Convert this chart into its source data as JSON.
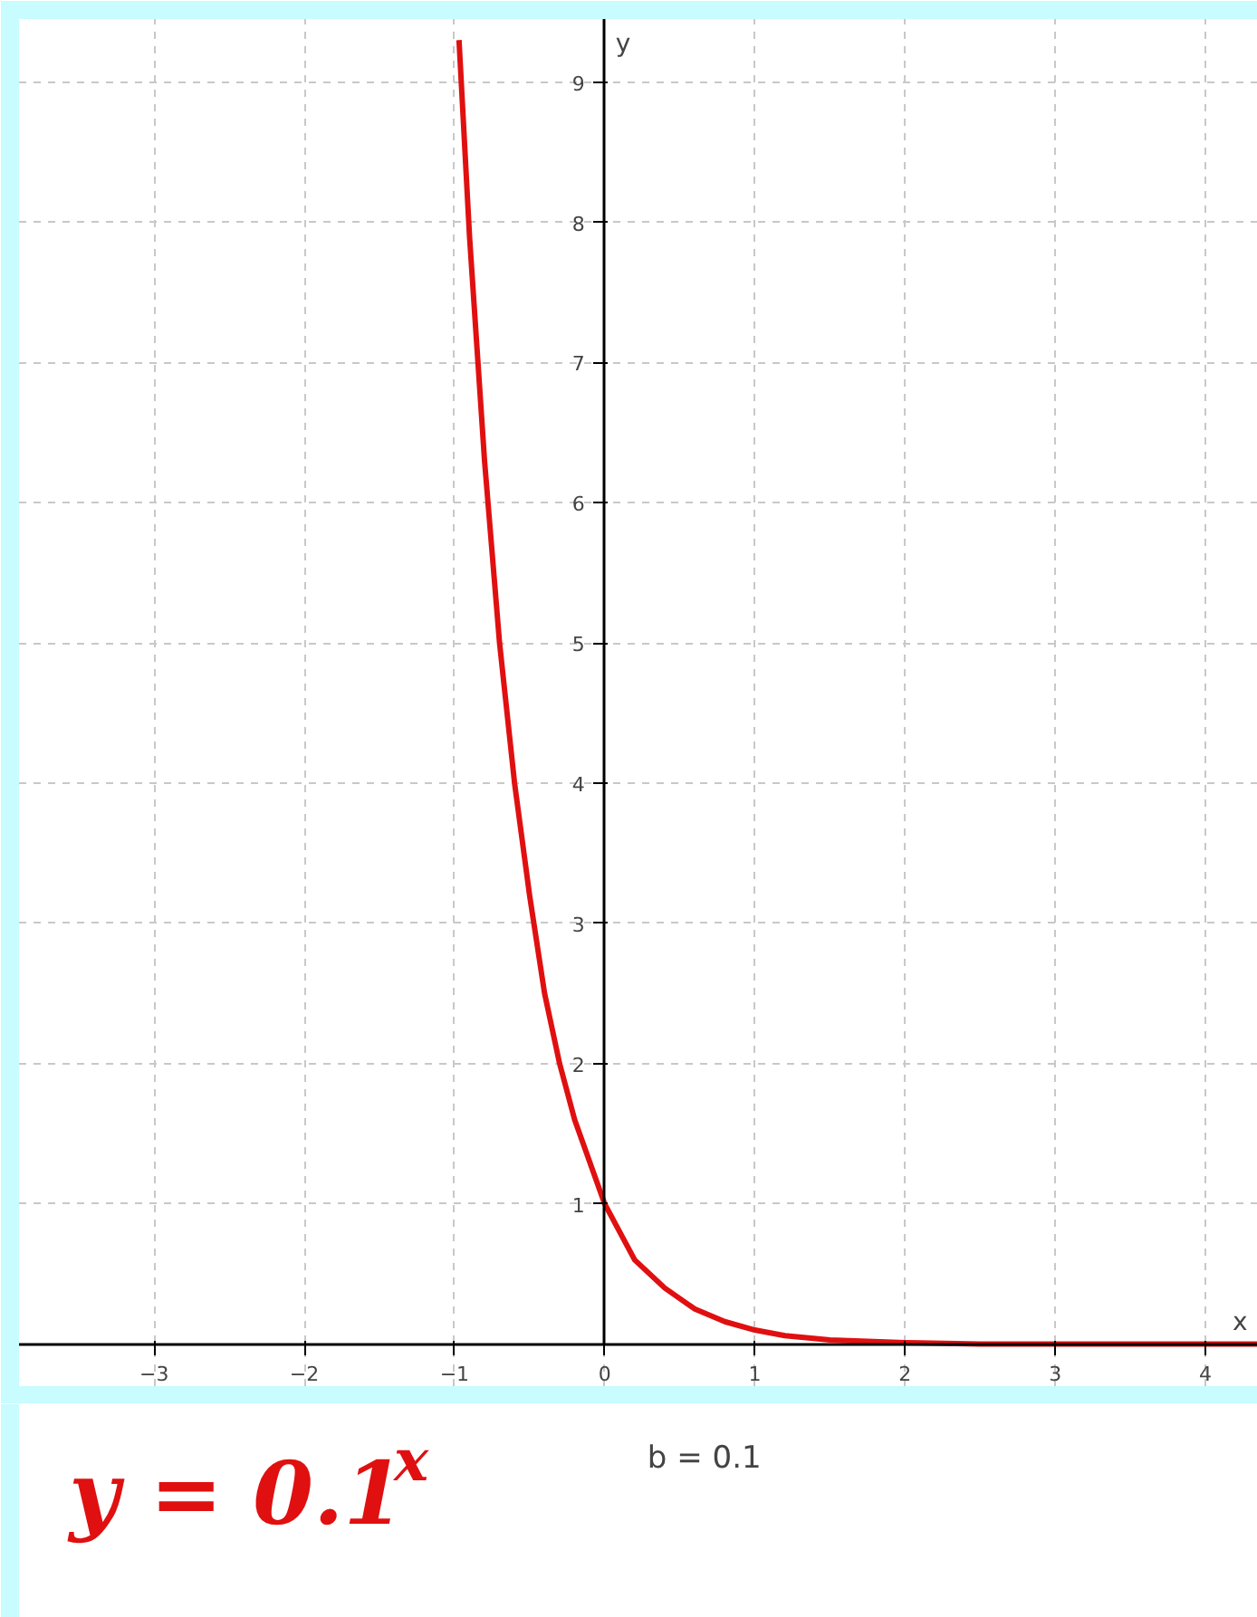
{
  "chart_data": {
    "type": "line",
    "x": [
      -0.97,
      -0.95,
      -0.9,
      -0.85,
      -0.8,
      -0.7,
      -0.6,
      -0.5,
      -0.4,
      -0.3,
      -0.2,
      -0.1,
      0,
      0.1,
      0.2,
      0.3,
      0.4,
      0.6,
      0.8,
      1,
      1.2,
      1.5,
      2,
      2.5,
      3,
      3.5,
      4,
      4.35
    ],
    "series": [
      {
        "color": "#e01010",
        "values": [
          9.3,
          8.9,
          7.9,
          7.1,
          6.3,
          5.0,
          4.0,
          3.2,
          2.5,
          2.0,
          1.6,
          1.3,
          1.0,
          0.8,
          0.6,
          0.5,
          0.4,
          0.25,
          0.16,
          0.1,
          0.06,
          0.03,
          0.01,
          0.0,
          0.0,
          0.0,
          0.0,
          0.0
        ]
      }
    ],
    "xlabel": "x",
    "ylabel": "y",
    "xlim": [
      -3.9,
      4.35
    ],
    "ylim": [
      -0.3,
      9.45
    ],
    "xticks": [
      -3,
      -2,
      -1,
      0,
      1,
      2,
      3,
      4
    ],
    "yticks": [
      1,
      2,
      3,
      4,
      5,
      6,
      7,
      8,
      9
    ],
    "grid": true,
    "line_style": "solid",
    "marker": "none",
    "annotations": [
      "y = 0.1$^{x}$",
      "b = 0.1"
    ]
  }
}
